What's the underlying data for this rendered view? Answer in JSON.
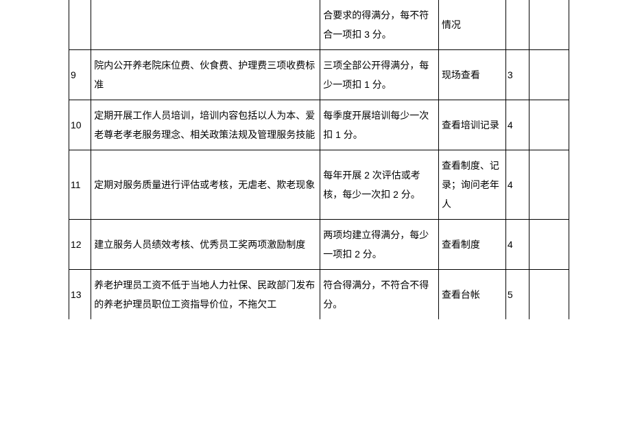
{
  "table": {
    "rows": [
      {
        "num": "",
        "desc": "",
        "criteria": "合要求的得满分，每不符合一项扣 3 分。",
        "method": "情况",
        "score": "",
        "blank": ""
      },
      {
        "num": "9",
        "desc": "院内公开养老院床位费、伙食费、护理费三项收费标准",
        "criteria": "三项全部公开得满分，每少一项扣 1 分。",
        "method": "现场查看",
        "score": "3",
        "blank": ""
      },
      {
        "num": "10",
        "desc": "定期开展工作人员培训，培训内容包括以人为本、爱老尊老孝老服务理念、相关政策法规及管理服务技能",
        "criteria": "每季度开展培训每少一次扣 1 分。",
        "method": "查看培训记录",
        "score": "4",
        "blank": ""
      },
      {
        "num": "11",
        "desc": "定期对服务质量进行评估或考核，无虐老、欺老现象",
        "criteria": "每年开展 2 次评估或考核，每少一次扣 2 分。",
        "method": "查看制度、记录；询问老年人",
        "score": "4",
        "blank": ""
      },
      {
        "num": "12",
        "desc": "建立服务人员绩效考核、优秀员工奖两项激励制度",
        "criteria": "两项均建立得满分，每少一项扣 2 分。",
        "method": "查看制度",
        "score": "4",
        "blank": ""
      },
      {
        "num": "13",
        "desc": "养老护理员工资不低于当地人力社保、民政部门发布的养老护理员职位工资指导价位，不拖欠工",
        "criteria": "符合得满分，不符合不得分。",
        "method": "查看台帐",
        "score": "5",
        "blank": ""
      }
    ]
  }
}
